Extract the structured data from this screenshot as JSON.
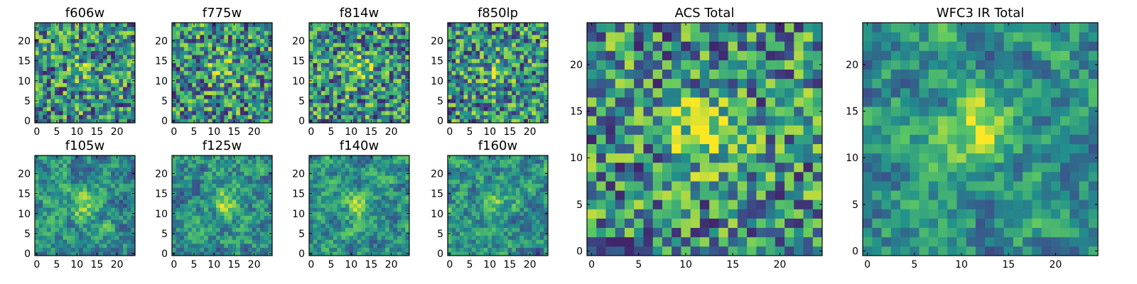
{
  "chart_data": {
    "type": "heatmap",
    "description_free": true,
    "colormap": [
      "#440154",
      "#3b528b",
      "#21918c",
      "#5ec962",
      "#fde725"
    ],
    "panels": [
      {
        "title": "f606w",
        "xlim": [
          0,
          24
        ],
        "ylim": [
          0,
          24
        ],
        "xticks": [
          0,
          5,
          10,
          15,
          20
        ],
        "yticks": [
          0,
          5,
          10,
          15,
          20
        ],
        "grid": [
          25,
          25
        ],
        "seed": 11,
        "peak": [
          12,
          13
        ],
        "peak_strength": 0.15,
        "smooth": 0,
        "contrast": 1.0
      },
      {
        "title": "f775w",
        "xlim": [
          0,
          24
        ],
        "ylim": [
          0,
          24
        ],
        "xticks": [
          0,
          5,
          10,
          15,
          20
        ],
        "yticks": [
          0,
          5,
          10,
          15,
          20
        ],
        "grid": [
          25,
          25
        ],
        "seed": 23,
        "peak": [
          12,
          13
        ],
        "peak_strength": 0.25,
        "smooth": 0,
        "contrast": 1.0
      },
      {
        "title": "f814w",
        "xlim": [
          0,
          24
        ],
        "ylim": [
          0,
          24
        ],
        "xticks": [
          0,
          5,
          10,
          15,
          20
        ],
        "yticks": [
          0,
          5,
          10,
          15,
          20
        ],
        "grid": [
          25,
          25
        ],
        "seed": 37,
        "peak": [
          12,
          13
        ],
        "peak_strength": 0.28,
        "smooth": 0,
        "contrast": 1.0
      },
      {
        "title": "f850lp",
        "xlim": [
          0,
          24
        ],
        "ylim": [
          0,
          24
        ],
        "xticks": [
          0,
          5,
          10,
          15,
          20
        ],
        "yticks": [
          0,
          5,
          10,
          15,
          20
        ],
        "grid": [
          25,
          25
        ],
        "seed": 41,
        "peak": [
          12,
          13
        ],
        "peak_strength": 0.2,
        "smooth": 0,
        "contrast": 1.0
      },
      {
        "title": "f105w",
        "xlim": [
          0,
          24
        ],
        "ylim": [
          0,
          24
        ],
        "xticks": [
          0,
          5,
          10,
          15,
          20
        ],
        "yticks": [
          0,
          5,
          10,
          15,
          20
        ],
        "grid": [
          25,
          25
        ],
        "seed": 53,
        "peak": [
          12,
          12
        ],
        "peak_strength": 0.3,
        "smooth": 1,
        "contrast": 1.0
      },
      {
        "title": "f125w",
        "xlim": [
          0,
          24
        ],
        "ylim": [
          0,
          24
        ],
        "xticks": [
          0,
          5,
          10,
          15,
          20
        ],
        "yticks": [
          0,
          5,
          10,
          15,
          20
        ],
        "grid": [
          25,
          25
        ],
        "seed": 67,
        "peak": [
          13,
          13
        ],
        "peak_strength": 0.3,
        "smooth": 1,
        "contrast": 1.0
      },
      {
        "title": "f140w",
        "xlim": [
          0,
          24
        ],
        "ylim": [
          0,
          24
        ],
        "xticks": [
          0,
          5,
          10,
          15,
          20
        ],
        "yticks": [
          0,
          5,
          10,
          15,
          20
        ],
        "grid": [
          25,
          25
        ],
        "seed": 71,
        "peak": [
          12,
          12
        ],
        "peak_strength": 0.3,
        "smooth": 1,
        "contrast": 1.0
      },
      {
        "title": "f160w",
        "xlim": [
          0,
          24
        ],
        "ylim": [
          0,
          24
        ],
        "xticks": [
          0,
          5,
          10,
          15,
          20
        ],
        "yticks": [
          0,
          5,
          10,
          15,
          20
        ],
        "grid": [
          25,
          25
        ],
        "seed": 83,
        "peak": [
          12,
          12
        ],
        "peak_strength": 0.3,
        "smooth": 1,
        "contrast": 1.0
      },
      {
        "title": "ACS Total",
        "xlim": [
          0,
          24
        ],
        "ylim": [
          0,
          24
        ],
        "xticks": [
          0,
          5,
          10,
          15,
          20
        ],
        "yticks": [
          0,
          5,
          10,
          15,
          20
        ],
        "grid": [
          25,
          25
        ],
        "seed": 97,
        "peak": [
          12,
          13
        ],
        "peak_strength": 0.45,
        "smooth": 0,
        "contrast": 1.0
      },
      {
        "title": "WFC3 IR Total",
        "xlim": [
          0,
          24
        ],
        "ylim": [
          0,
          24
        ],
        "xticks": [
          0,
          5,
          10,
          15,
          20
        ],
        "yticks": [
          0,
          5,
          10,
          15,
          20
        ],
        "grid": [
          25,
          25
        ],
        "seed": 101,
        "peak": [
          12,
          13
        ],
        "peak_strength": 0.5,
        "smooth": 1,
        "contrast": 1.0
      }
    ]
  }
}
